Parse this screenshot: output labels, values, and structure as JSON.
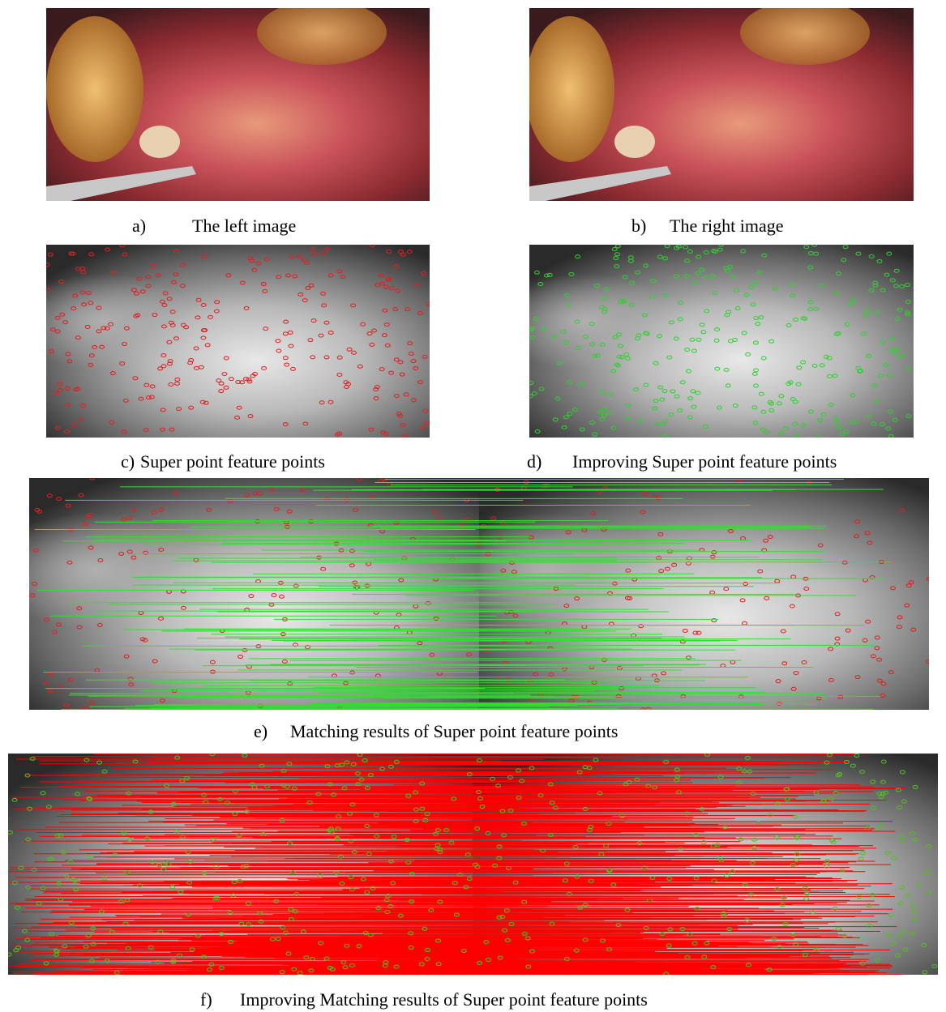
{
  "panels": [
    {
      "label": "a)",
      "caption": "The left image"
    },
    {
      "label": "b)",
      "caption": "The right image"
    },
    {
      "label": "c)",
      "caption": "Super point feature points"
    },
    {
      "label": "d)",
      "caption": "Improving Super point feature points"
    },
    {
      "label": "e)",
      "caption": "Matching results of Super point feature points"
    },
    {
      "label": "f)",
      "caption": "Improving Matching results of Super point feature points"
    }
  ]
}
